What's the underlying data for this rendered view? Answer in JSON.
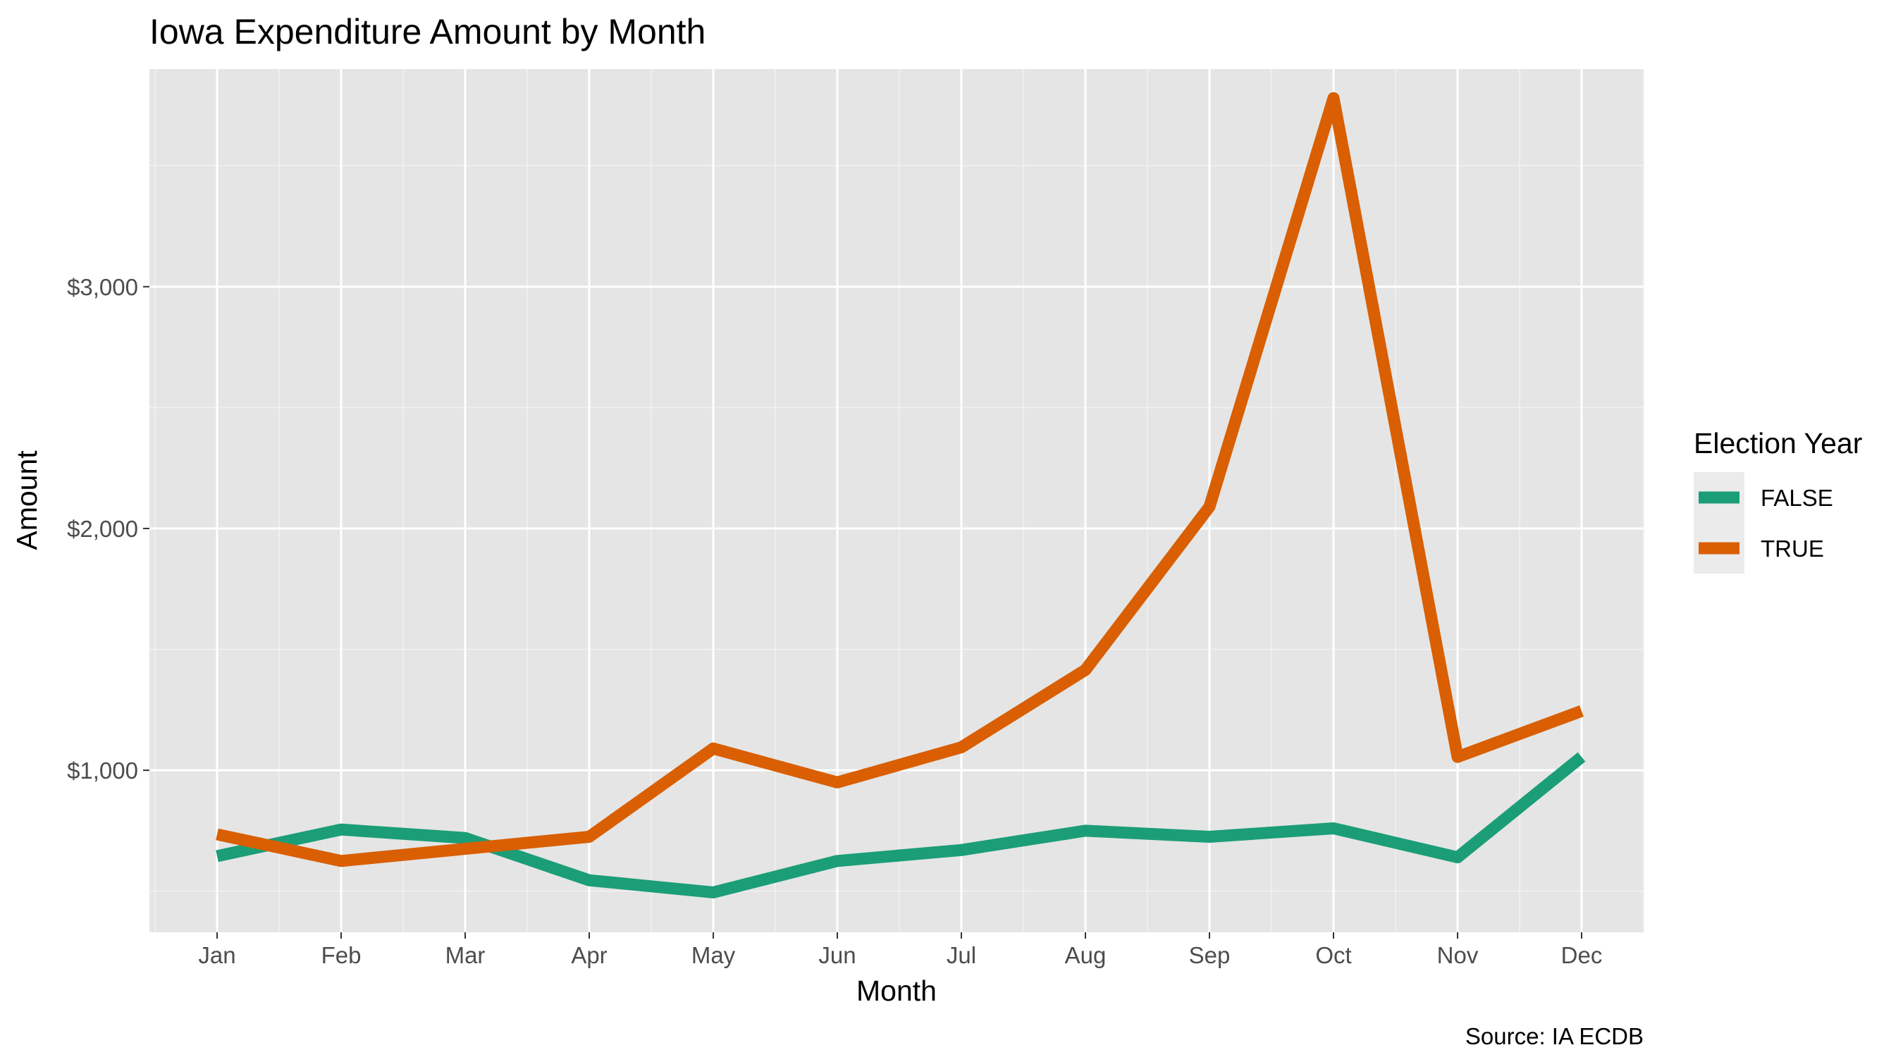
{
  "chart_data": {
    "type": "line",
    "title": "Iowa Expenditure Amount by Month",
    "xlabel": "Month",
    "ylabel": "Amount",
    "caption": "Source: IA ECDB",
    "categories": [
      "Jan",
      "Feb",
      "Mar",
      "Apr",
      "May",
      "Jun",
      "Jul",
      "Aug",
      "Sep",
      "Oct",
      "Nov",
      "Dec"
    ],
    "y_ticks": [
      1000,
      2000,
      3000
    ],
    "y_tick_labels": [
      "$1,000",
      "$2,000",
      "$3,000"
    ],
    "ylim": [
      330,
      3900
    ],
    "grid": true,
    "legend": {
      "title": "Election Year",
      "position": "right"
    },
    "series": [
      {
        "name": "FALSE",
        "color": "#1b9e77",
        "values": [
          645,
          755,
          720,
          545,
          495,
          625,
          670,
          750,
          725,
          760,
          640,
          1055
        ]
      },
      {
        "name": "TRUE",
        "color": "#d95f02",
        "values": [
          735,
          625,
          675,
          725,
          1090,
          950,
          1095,
          1415,
          2090,
          3780,
          1055,
          1245
        ]
      }
    ]
  }
}
